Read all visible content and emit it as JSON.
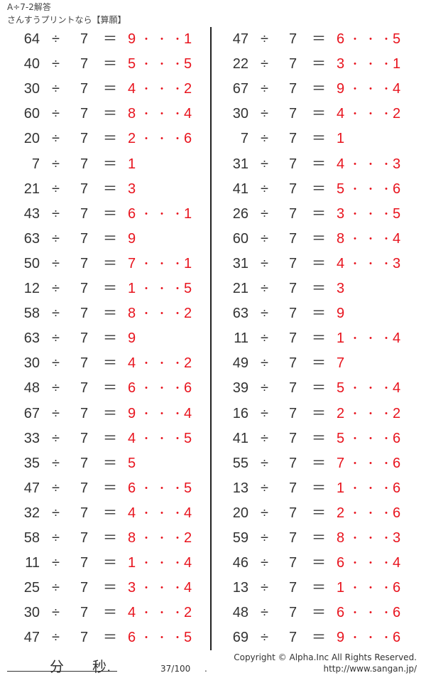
{
  "header": {
    "title": "A÷7-2解答",
    "subtitle": "さんすうプリントなら【算願】"
  },
  "divisor": "7",
  "colors": {
    "answer": "#e8141e",
    "text": "#333333"
  },
  "columns": [
    [
      {
        "dividend": "64",
        "quotient": "9",
        "remainder": "1"
      },
      {
        "dividend": "40",
        "quotient": "5",
        "remainder": "5"
      },
      {
        "dividend": "30",
        "quotient": "4",
        "remainder": "2"
      },
      {
        "dividend": "60",
        "quotient": "8",
        "remainder": "4"
      },
      {
        "dividend": "20",
        "quotient": "2",
        "remainder": "6"
      },
      {
        "dividend": "7",
        "quotient": "1",
        "remainder": ""
      },
      {
        "dividend": "21",
        "quotient": "3",
        "remainder": ""
      },
      {
        "dividend": "43",
        "quotient": "6",
        "remainder": "1"
      },
      {
        "dividend": "63",
        "quotient": "9",
        "remainder": ""
      },
      {
        "dividend": "50",
        "quotient": "7",
        "remainder": "1"
      },
      {
        "dividend": "12",
        "quotient": "1",
        "remainder": "5"
      },
      {
        "dividend": "58",
        "quotient": "8",
        "remainder": "2"
      },
      {
        "dividend": "63",
        "quotient": "9",
        "remainder": ""
      },
      {
        "dividend": "30",
        "quotient": "4",
        "remainder": "2"
      },
      {
        "dividend": "48",
        "quotient": "6",
        "remainder": "6"
      },
      {
        "dividend": "67",
        "quotient": "9",
        "remainder": "4"
      },
      {
        "dividend": "33",
        "quotient": "4",
        "remainder": "5"
      },
      {
        "dividend": "35",
        "quotient": "5",
        "remainder": ""
      },
      {
        "dividend": "47",
        "quotient": "6",
        "remainder": "5"
      },
      {
        "dividend": "32",
        "quotient": "4",
        "remainder": "4"
      },
      {
        "dividend": "58",
        "quotient": "8",
        "remainder": "2"
      },
      {
        "dividend": "11",
        "quotient": "1",
        "remainder": "4"
      },
      {
        "dividend": "25",
        "quotient": "3",
        "remainder": "4"
      },
      {
        "dividend": "30",
        "quotient": "4",
        "remainder": "2"
      },
      {
        "dividend": "47",
        "quotient": "6",
        "remainder": "5"
      }
    ],
    [
      {
        "dividend": "47",
        "quotient": "6",
        "remainder": "5"
      },
      {
        "dividend": "22",
        "quotient": "3",
        "remainder": "1"
      },
      {
        "dividend": "67",
        "quotient": "9",
        "remainder": "4"
      },
      {
        "dividend": "30",
        "quotient": "4",
        "remainder": "2"
      },
      {
        "dividend": "7",
        "quotient": "1",
        "remainder": ""
      },
      {
        "dividend": "31",
        "quotient": "4",
        "remainder": "3"
      },
      {
        "dividend": "41",
        "quotient": "5",
        "remainder": "6"
      },
      {
        "dividend": "26",
        "quotient": "3",
        "remainder": "5"
      },
      {
        "dividend": "60",
        "quotient": "8",
        "remainder": "4"
      },
      {
        "dividend": "31",
        "quotient": "4",
        "remainder": "3"
      },
      {
        "dividend": "21",
        "quotient": "3",
        "remainder": ""
      },
      {
        "dividend": "63",
        "quotient": "9",
        "remainder": ""
      },
      {
        "dividend": "11",
        "quotient": "1",
        "remainder": "4"
      },
      {
        "dividend": "49",
        "quotient": "7",
        "remainder": ""
      },
      {
        "dividend": "39",
        "quotient": "5",
        "remainder": "4"
      },
      {
        "dividend": "16",
        "quotient": "2",
        "remainder": "2"
      },
      {
        "dividend": "41",
        "quotient": "5",
        "remainder": "6"
      },
      {
        "dividend": "55",
        "quotient": "7",
        "remainder": "6"
      },
      {
        "dividend": "13",
        "quotient": "1",
        "remainder": "6"
      },
      {
        "dividend": "20",
        "quotient": "2",
        "remainder": "6"
      },
      {
        "dividend": "59",
        "quotient": "8",
        "remainder": "3"
      },
      {
        "dividend": "46",
        "quotient": "6",
        "remainder": "4"
      },
      {
        "dividend": "13",
        "quotient": "1",
        "remainder": "6"
      },
      {
        "dividend": "48",
        "quotient": "6",
        "remainder": "6"
      },
      {
        "dividend": "69",
        "quotient": "9",
        "remainder": "6"
      }
    ]
  ],
  "symbols": {
    "divide": "÷",
    "equals": "＝",
    "dot": "・"
  },
  "footer": {
    "minutes_label": "分",
    "seconds_label": "秒.",
    "page": "37/100",
    "copyright": "Copyright ©  Alpha.Inc All Rights Reserved.",
    "dot": ".",
    "url": "http://www.sangan.jp/"
  }
}
